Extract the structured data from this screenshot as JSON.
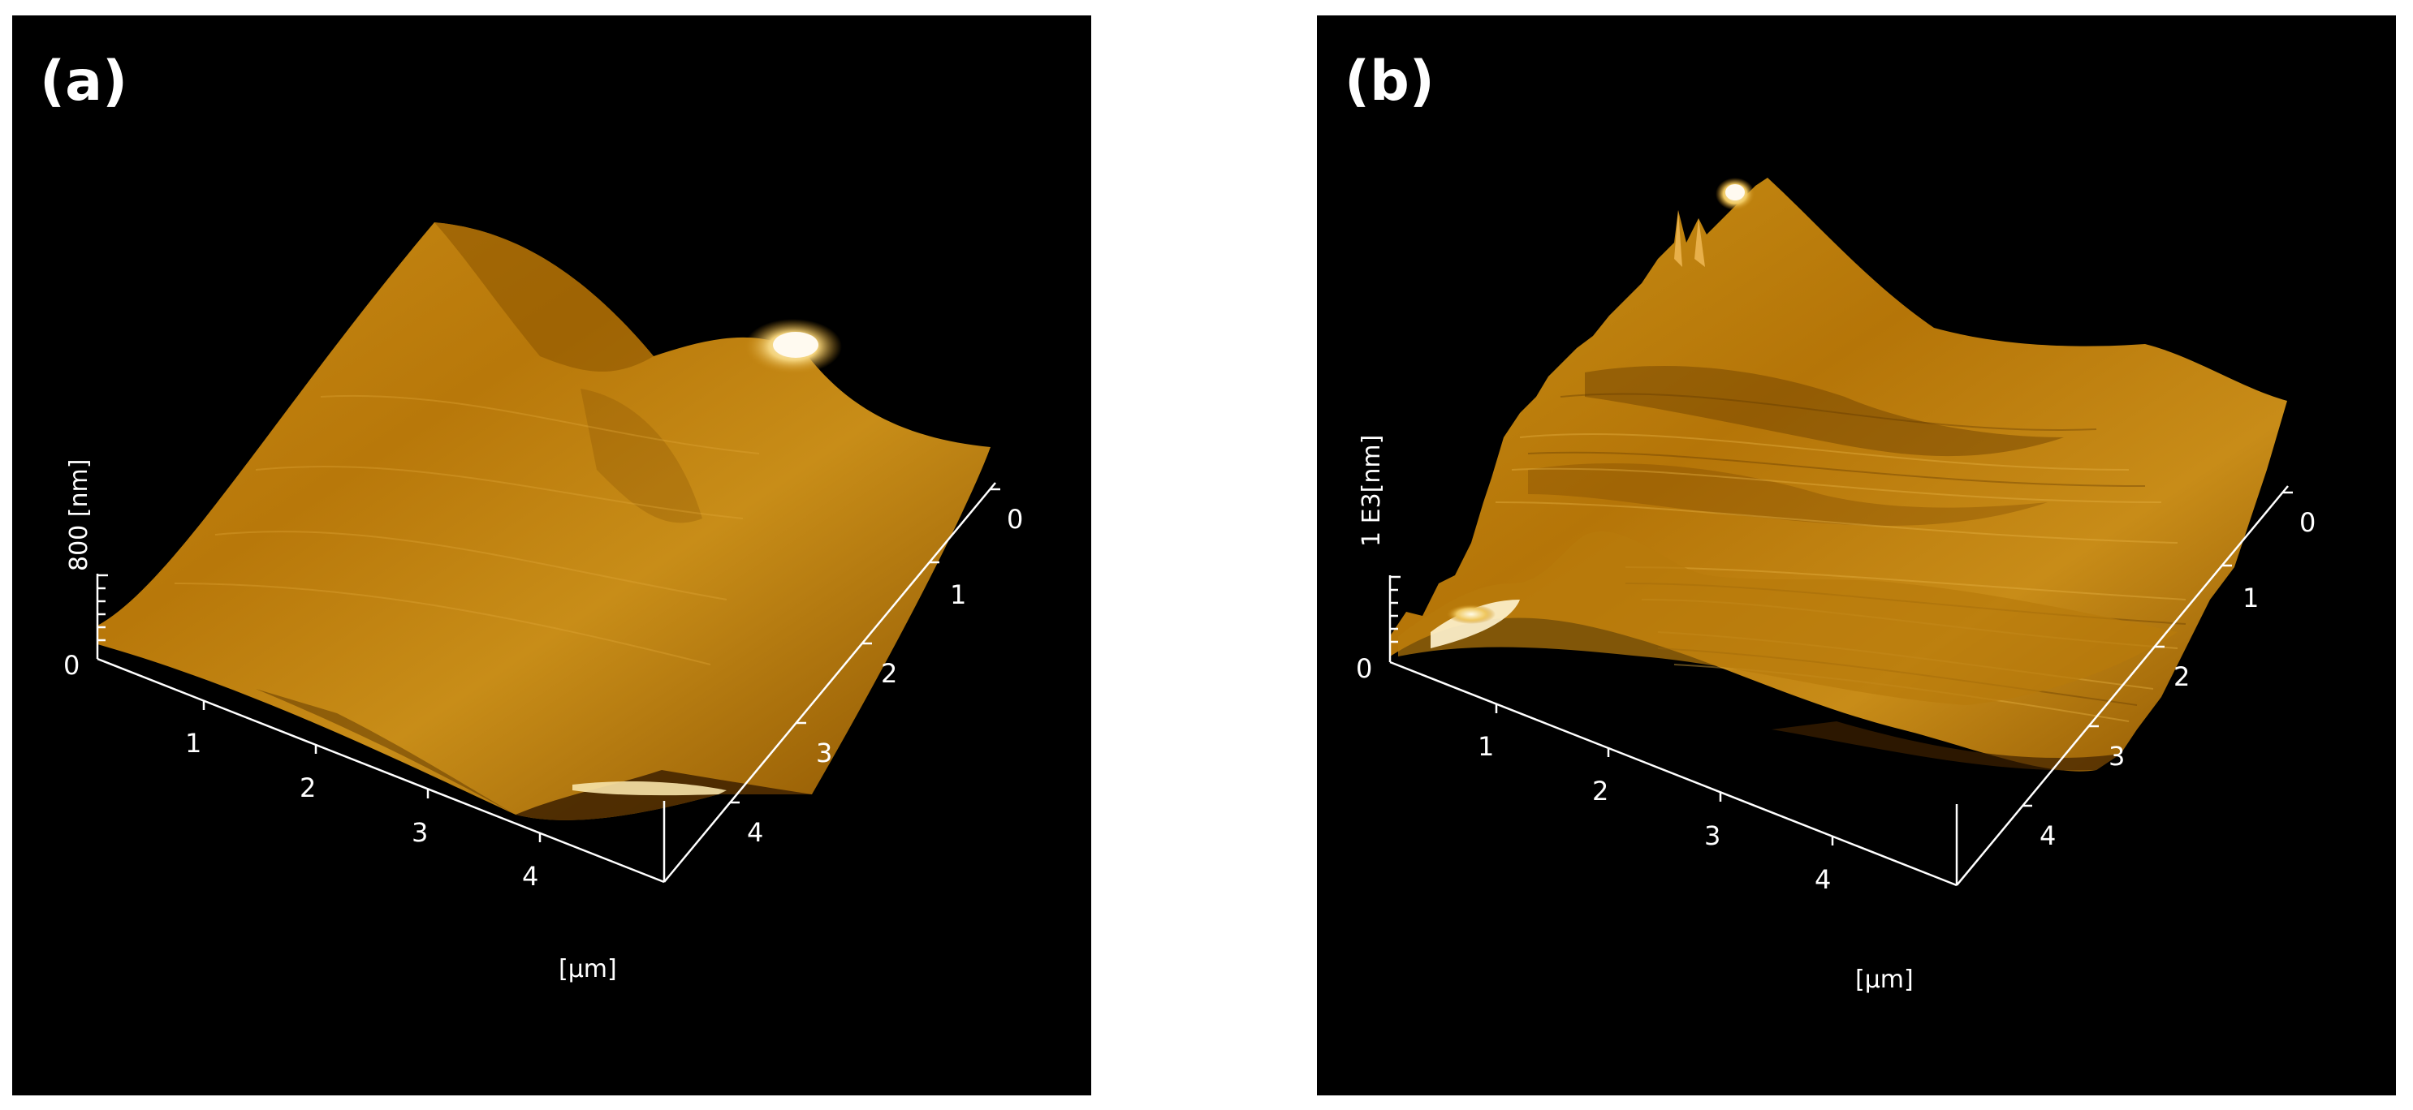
{
  "panels": [
    {
      "label": "(a)",
      "z_axis": {
        "unit": "800 [nm]",
        "zero": "0"
      },
      "x_axis": {
        "ticks": [
          "1",
          "2",
          "3",
          "4"
        ],
        "unit": "[µm]"
      },
      "y_axis": {
        "ticks": [
          "0",
          "1",
          "2",
          "3",
          "4"
        ]
      }
    },
    {
      "label": "(b)",
      "z_axis": {
        "unit": "1 E3[nm]",
        "zero": "0"
      },
      "x_axis": {
        "ticks": [
          "1",
          "2",
          "3",
          "4"
        ],
        "unit": "[µm]"
      },
      "y_axis": {
        "ticks": [
          "0",
          "1",
          "2",
          "3",
          "4"
        ]
      }
    }
  ],
  "colors": {
    "background": "#000000",
    "surface_dark": "#5a3300",
    "surface_mid": "#b87a0a",
    "surface_light": "#e8b02a",
    "highlight": "#fff4c8",
    "axis": "#ffffff"
  }
}
